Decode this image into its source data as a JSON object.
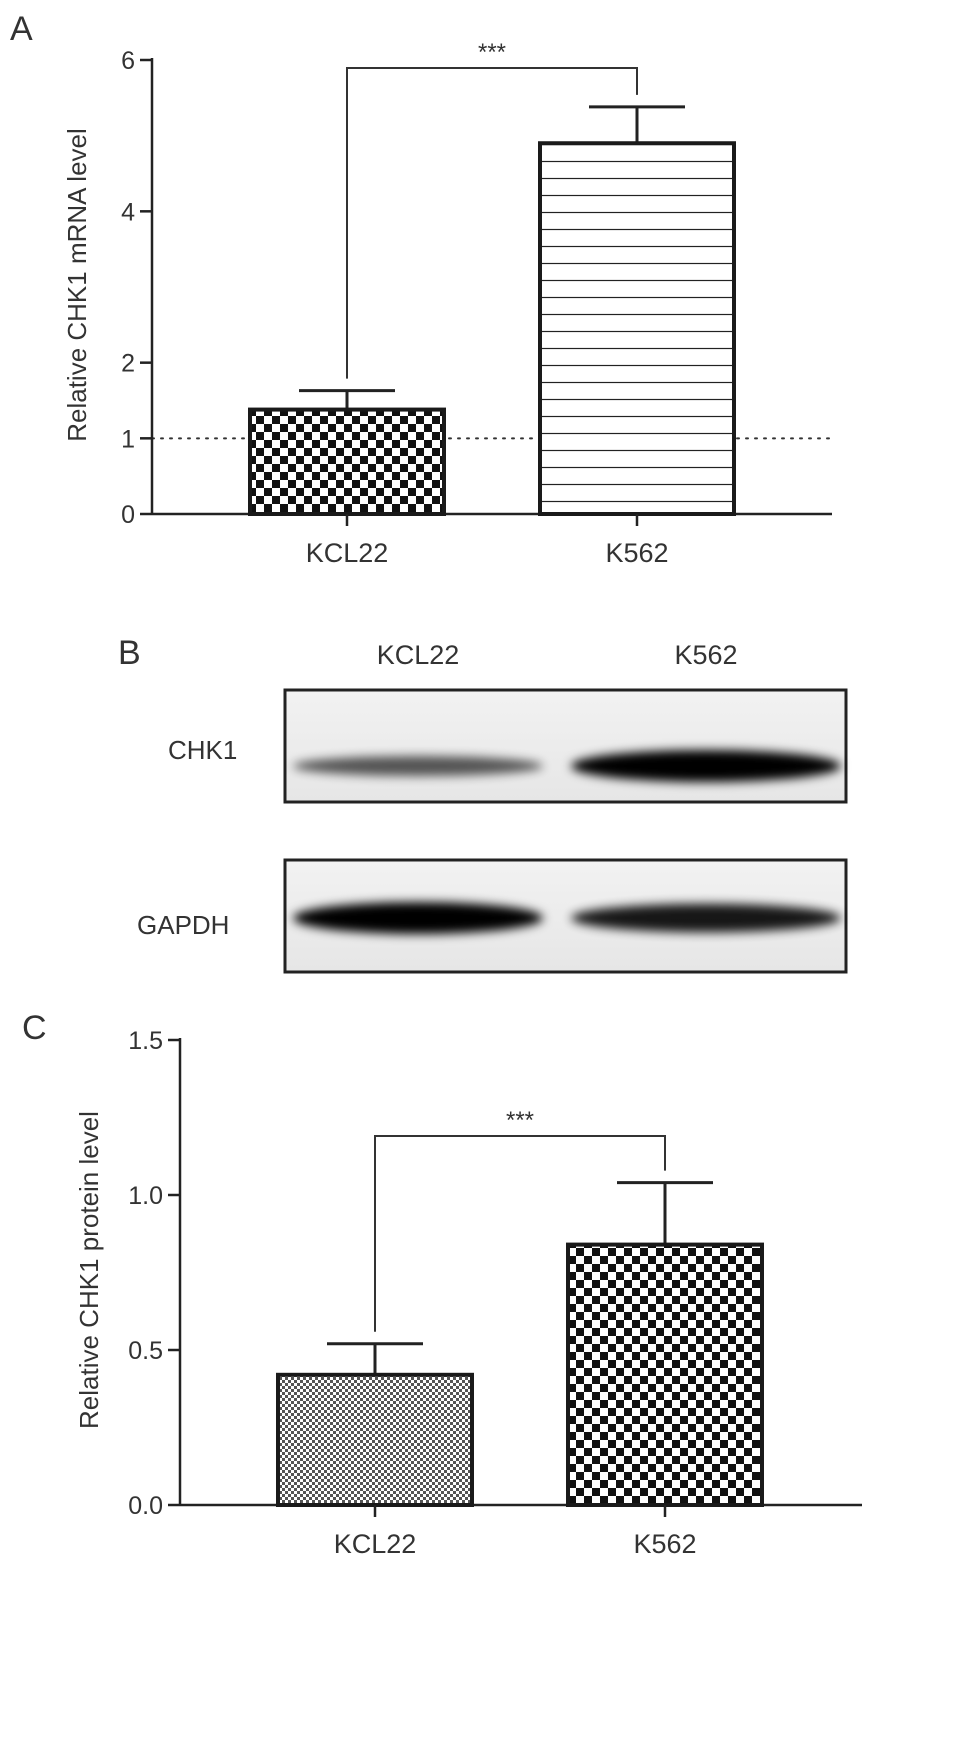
{
  "panels": {
    "A": {
      "letter": "A",
      "chart_data": {
        "type": "bar",
        "categories": [
          "KCL22",
          "K562"
        ],
        "values": [
          1.38,
          4.9
        ],
        "errors": [
          0.25,
          0.48
        ],
        "ylabel": "Relative CHK1 mRNA level",
        "ylim": [
          0,
          6
        ],
        "yticks": [
          0,
          1,
          2,
          4,
          6
        ],
        "reference_line": 1,
        "significance": "***",
        "patterns": [
          "checker",
          "hlines"
        ]
      }
    },
    "B": {
      "letter": "B",
      "lane_labels": [
        "KCL22",
        "K562"
      ],
      "rows": [
        {
          "label": "CHK1",
          "band_intensity": [
            0.45,
            1.0
          ]
        },
        {
          "label": "GAPDH",
          "band_intensity": [
            1.0,
            0.85
          ]
        }
      ]
    },
    "C": {
      "letter": "C",
      "chart_data": {
        "type": "bar",
        "categories": [
          "KCL22",
          "K562"
        ],
        "values": [
          0.42,
          0.84
        ],
        "errors": [
          0.1,
          0.2
        ],
        "ylabel": "Relative CHK1 protein level",
        "ylim": [
          0,
          1.5
        ],
        "yticks": [
          "0.0",
          "0.5",
          "1.0",
          "1.5"
        ],
        "significance": "***",
        "patterns": [
          "finecheck",
          "checker"
        ]
      }
    }
  }
}
